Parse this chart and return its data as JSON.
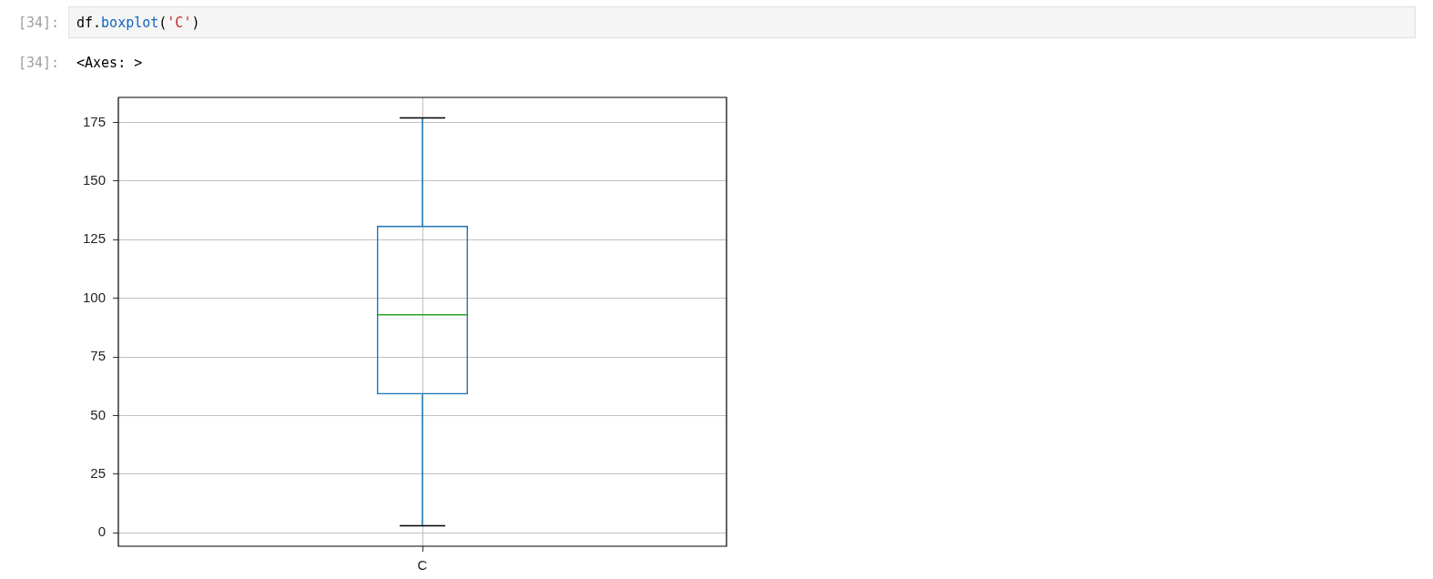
{
  "chart_data": {
    "type": "box",
    "categories": [
      "C"
    ],
    "color": "#1f77b4",
    "boxes": [
      {
        "low": 3,
        "q1": 59,
        "median": 93,
        "q3": 131,
        "high": 177
      }
    ],
    "ylim": [
      -5.7,
      185.7
    ],
    "yticks": [
      0,
      25,
      50,
      75,
      100,
      125,
      150,
      175
    ],
    "grid": true,
    "annotations": [
      "[34]:",
      "df.boxplot('C')",
      "[34]:",
      "<Axes: >"
    ]
  }
}
